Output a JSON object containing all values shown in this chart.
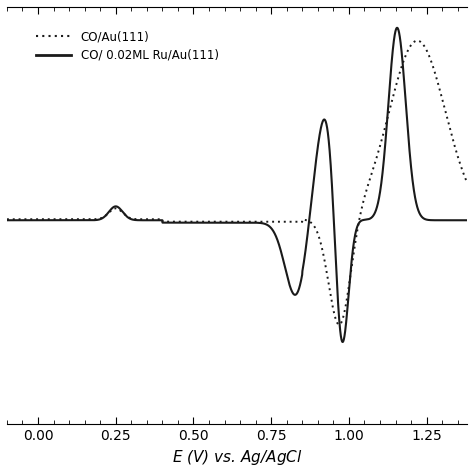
{
  "xlabel": "$E$ (V) vs. Ag/AgCl",
  "xlim": [
    -0.1,
    1.38
  ],
  "xticks": [
    0.0,
    0.25,
    0.5,
    0.75,
    1.0,
    1.25
  ],
  "xticklabels": [
    "0.00",
    "0.25",
    "0.50",
    "0.75",
    "1.00",
    "1.25"
  ],
  "legend1": "CO/Au(111)",
  "legend2": "CO/ 0.02ML Ru/Au(111)",
  "line_color": "#1a1a1a",
  "ylim": [
    -1.05,
    1.05
  ]
}
